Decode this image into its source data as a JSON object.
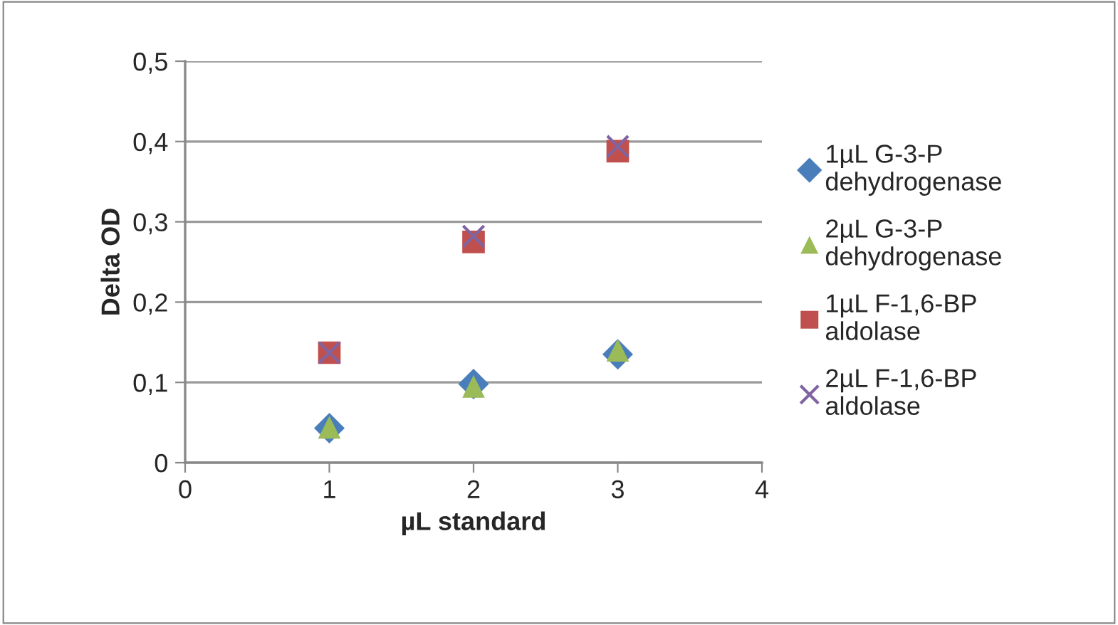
{
  "chart_data": {
    "type": "scatter",
    "xlabel": "µL standard",
    "ylabel": "Delta OD",
    "x": [
      1,
      2,
      3
    ],
    "series": [
      {
        "name": "1µL G-3-P dehydrogenase",
        "color": "#4a7ebb",
        "marker": "diamond",
        "values": [
          0.043,
          0.098,
          0.135
        ]
      },
      {
        "name": "2µL G-3-P dehydrogenase",
        "color": "#9bbb59",
        "marker": "triangle",
        "values": [
          0.044,
          0.095,
          0.14
        ]
      },
      {
        "name": "1µL F-1,6-BP aldolase",
        "color": "#c0504d",
        "marker": "square",
        "values": [
          0.137,
          0.275,
          0.388
        ]
      },
      {
        "name": "2µL F-1,6-BP aldolase",
        "color": "#8064a2",
        "marker": "cross",
        "values": [
          0.137,
          0.282,
          0.394
        ]
      }
    ],
    "xlim": [
      0,
      4
    ],
    "xticks": [
      {
        "value": 0,
        "label": "0"
      },
      {
        "value": 1,
        "label": "1"
      },
      {
        "value": 2,
        "label": "2"
      },
      {
        "value": 3,
        "label": "3"
      },
      {
        "value": 4,
        "label": "4"
      }
    ],
    "ylim": [
      0,
      0.5
    ],
    "yticks": [
      {
        "value": 0,
        "label": "0"
      },
      {
        "value": 0.1,
        "label": "0,1"
      },
      {
        "value": 0.2,
        "label": "0,2"
      },
      {
        "value": 0.3,
        "label": "0,3"
      },
      {
        "value": 0.4,
        "label": "0,4"
      },
      {
        "value": 0.5,
        "label": "0,5"
      }
    ],
    "grid": "y",
    "legend": "right"
  }
}
